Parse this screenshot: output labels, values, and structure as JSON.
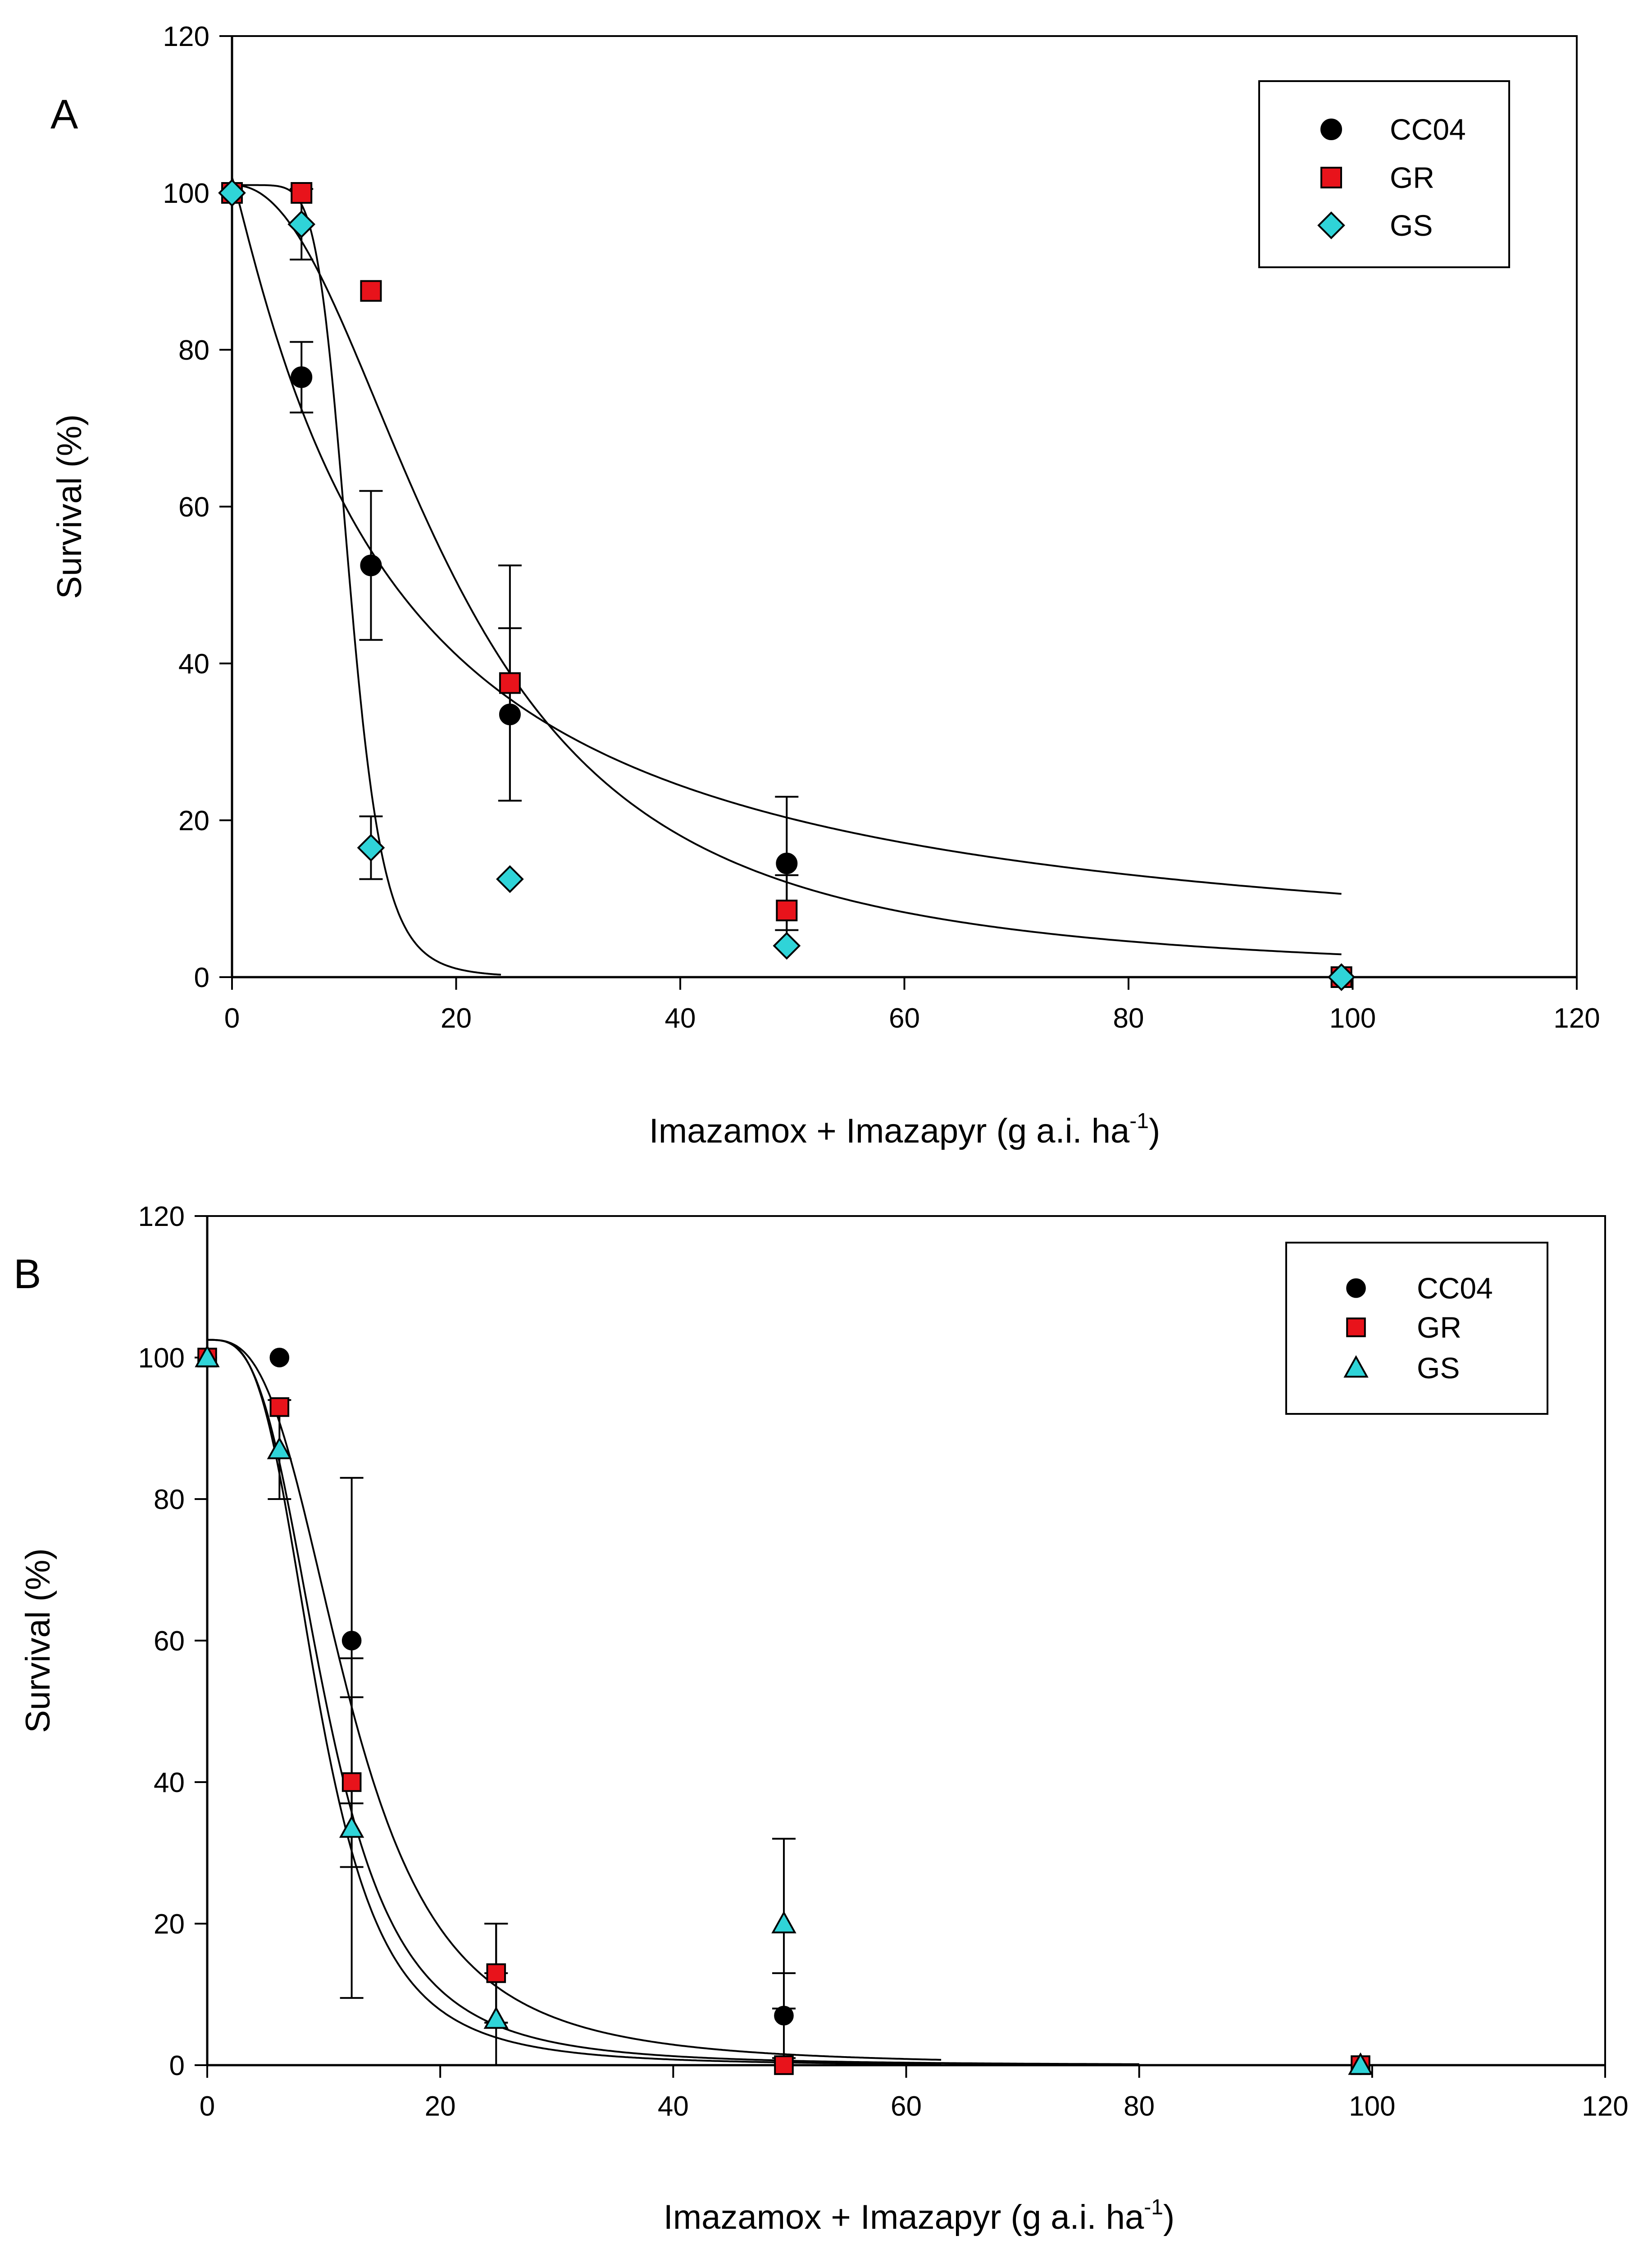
{
  "chart_data": [
    {
      "type": "scatter",
      "panel_label": "A",
      "xlabel": "Imazamox + Imazapyr (g a.i. ha",
      "xlabel_sup": "-1",
      "xlabel_end": ")",
      "ylabel": "Survival (%)",
      "xlim": [
        0,
        120
      ],
      "ylim": [
        0,
        120
      ],
      "xticks": [
        0,
        20,
        40,
        60,
        80,
        100,
        120
      ],
      "yticks": [
        0,
        20,
        40,
        60,
        80,
        100,
        120
      ],
      "legend_position": "top-right",
      "series": [
        {
          "name": "CC04",
          "marker": "circle",
          "color": "#000000",
          "x": [
            0,
            6.2,
            12.4,
            24.8,
            49.5,
            99
          ],
          "y": [
            100,
            76.5,
            52.5,
            33.5,
            14.5,
            0
          ],
          "err": [
            0,
            4.5,
            9.5,
            11,
            8.5,
            0
          ],
          "curve": {
            "model": "log-logistic",
            "top": 102,
            "bottom": 0,
            "ec50": 14,
            "slope": 1.1,
            "xmax": 99
          }
        },
        {
          "name": "GR",
          "marker": "square",
          "color": "#e8131b",
          "x": [
            0,
            6.2,
            12.4,
            24.8,
            49.5,
            99
          ],
          "y": [
            100,
            100,
            87.5,
            37.5,
            8.5,
            0
          ],
          "err": [
            0,
            0,
            0,
            15,
            4.5,
            0
          ],
          "curve": {
            "model": "log-logistic",
            "top": 101,
            "bottom": 0,
            "ec50": 20,
            "slope": 2.2,
            "xmax": 99
          }
        },
        {
          "name": "GS",
          "marker": "diamond",
          "color": "#2fd4d8",
          "x": [
            0,
            6.2,
            12.4,
            24.8,
            49.5,
            99
          ],
          "y": [
            100,
            96,
            16.5,
            12.5,
            4,
            0
          ],
          "err": [
            0,
            4.5,
            4,
            0,
            0,
            0
          ],
          "curve": {
            "model": "log-logistic",
            "top": 101,
            "bottom": 0,
            "ec50": 10.5,
            "slope": 7,
            "xmax": 24
          }
        }
      ]
    },
    {
      "type": "scatter",
      "panel_label": "B",
      "xlabel": "Imazamox + Imazapyr (g a.i. ha",
      "xlabel_sup": "-1",
      "xlabel_end": ")",
      "ylabel": "Survival (%)",
      "xlim": [
        0,
        120
      ],
      "ylim": [
        0,
        120
      ],
      "xticks": [
        0,
        20,
        40,
        60,
        80,
        100,
        120
      ],
      "yticks": [
        0,
        20,
        40,
        60,
        80,
        100,
        120
      ],
      "legend_position": "top-right",
      "series": [
        {
          "name": "CC04",
          "marker": "circle",
          "color": "#000000",
          "x": [
            0,
            6.2,
            12.4,
            24.8,
            49.5,
            99
          ],
          "y": [
            100,
            100,
            60,
            13,
            7,
            0
          ],
          "err": [
            0,
            0,
            23,
            7,
            6,
            0
          ],
          "curve": {
            "model": "log-logistic",
            "top": 102.5,
            "bottom": 0,
            "ec50": 12.3,
            "slope": 3.0,
            "xmax": 63
          }
        },
        {
          "name": "GR",
          "marker": "square",
          "color": "#e8131b",
          "x": [
            0,
            6.2,
            12.4,
            24.8,
            49.5,
            99
          ],
          "y": [
            100,
            93,
            40,
            13,
            0,
            0
          ],
          "err": [
            0,
            0,
            12,
            7,
            0,
            0
          ],
          "curve": {
            "model": "log-logistic",
            "top": 102.5,
            "bottom": 0,
            "ec50": 10.2,
            "slope": 3.2,
            "xmax": 80
          }
        },
        {
          "name": "GS",
          "marker": "triangle",
          "color": "#2fd4d8",
          "x": [
            0,
            6.2,
            12.4,
            24.8,
            49.5,
            99
          ],
          "y": [
            100,
            87,
            33.5,
            6.5,
            20,
            0
          ],
          "err": [
            0,
            7,
            24,
            6.5,
            12,
            0
          ],
          "curve": {
            "model": "log-logistic",
            "top": 102.5,
            "bottom": 0,
            "ec50": 9.6,
            "slope": 3.4,
            "xmax": 63
          }
        }
      ]
    }
  ]
}
